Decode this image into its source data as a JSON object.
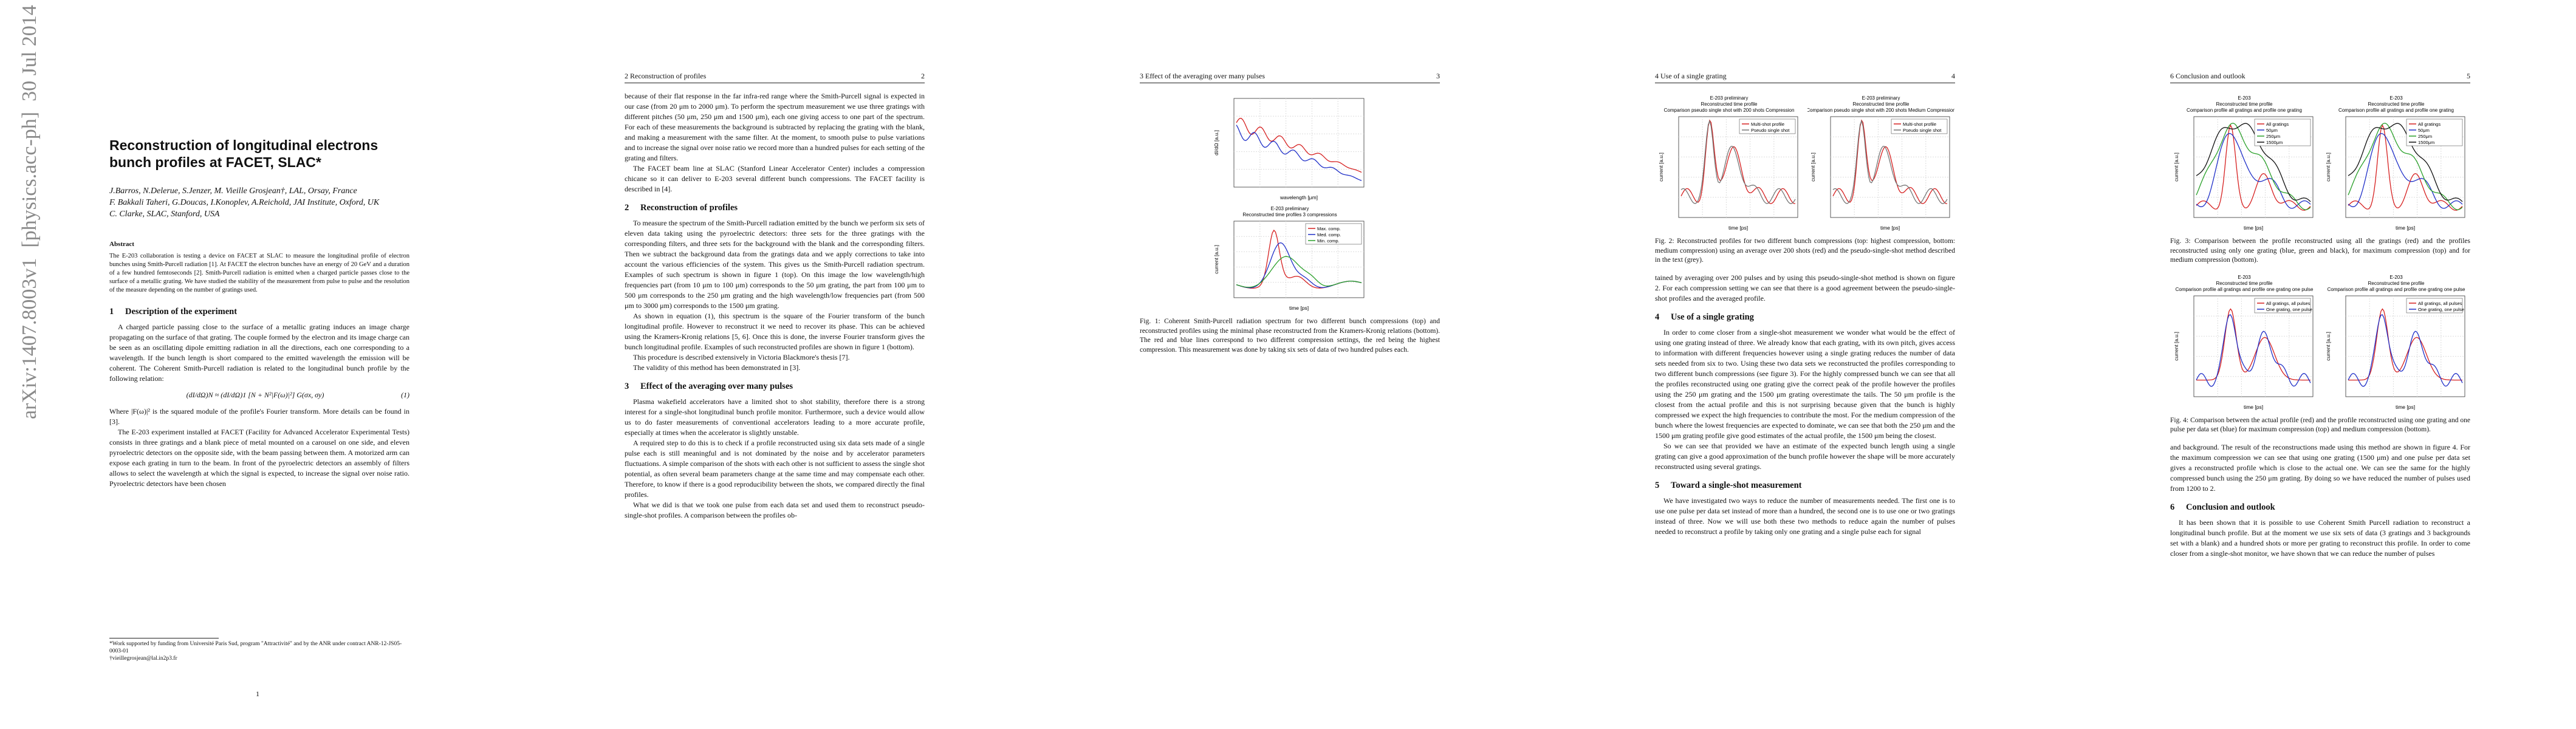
{
  "arxiv_stamp": "arXiv:1407.8003v1  [physics.acc-ph]  30 Jul 2014",
  "pages": [
    {
      "blocks": [
        {
          "kind": "title",
          "lines": [
            "Reconstruction of longitudinal electrons",
            "bunch profiles at FACET, SLAC*"
          ]
        },
        {
          "kind": "authors",
          "lines": [
            "J.Barros, N.Delerue, S.Jenzer, M. Vieille Grosjean†, LAL, Orsay, France",
            "F. Bakkali Taheri, G.Doucas, I.Konoplev, A.Reichold, JAI Institute, Oxford, UK",
            "C. Clarke, SLAC, Stanford, USA"
          ]
        },
        {
          "kind": "abstract-heading",
          "text": "Abstract"
        },
        {
          "kind": "abstract",
          "text": "The E-203 collaboration is testing a device on FACET at SLAC to measure the longitudinal profile of electron bunches using Smith-Purcell radiation [1]. At FACET the electron bunches have an energy of 20 GeV and a duration of a few hundred femtoseconds [2]. Smith-Purcell radiation is emitted when a charged particle passes close to the surface of a metallic grating. We have studied the stability of the measurement from pulse to pulse and the resolution of the measure depending on the number of gratings used."
        },
        {
          "kind": "section",
          "number": "1",
          "title": "Description of the experiment"
        },
        {
          "kind": "para",
          "text": "A charged particle passing close to the surface of a metallic grating induces an image charge propagating on the surface of that grating. The couple formed by the electron and its image charge can be seen as an oscillating dipole emitting radiation in all the directions, each one corresponding to a wavelength. If the bunch length is short compared to the emitted wavelength the emission will be coherent. The Coherent Smith-Purcell radiation is related to the longitudinal bunch profile by the following relation:"
        },
        {
          "kind": "equation",
          "text": "(dI/dΩ)N  ≈  (dI/dΩ)1  [N + N²|F(ω)|²] G(σx, σy)",
          "number": "(1)"
        },
        {
          "kind": "para-noindent",
          "text": "Where |F(ω)|² is the squared module of the profile's Fourier transform. More details can be found in [3]."
        },
        {
          "kind": "para",
          "text": "The E-203 experiment installed at FACET (Facility for Advanced Accelerator Experimental Tests) consists in three gratings and a blank piece of metal mounted on a carousel on one side, and eleven pyroelectric detectors on the opposite side, with the beam passing between them. A motorized arm can expose each grating in turn to the beam. In front of the pyroelectric detectors an assembly of filters allows to select the wavelength at which the signal is expected, to increase the signal over noise ratio. Pyroelectric detectors have been chosen"
        },
        {
          "kind": "footnote",
          "lines": [
            "*Work supported by funding from Université Paris Sud, program \"Attractivité\" and by the ANR under contract ANR-12-JS05-0003-01",
            "†vieillegrosjean@lal.in2p3.fr"
          ]
        }
      ],
      "page_number": "1"
    },
    {
      "header": {
        "section": "2 Reconstruction of profiles",
        "number": "2"
      },
      "blocks": [
        {
          "kind": "para-noindent",
          "text": "because of their flat response in the far infra-red range where the Smith-Purcell signal is expected in our case (from 20 μm to 2000 μm). To perform the spectrum measurement we use three gratings with different pitches (50 μm, 250 μm and 1500 μm), each one giving access to one part of the spectrum. For each of these measurements the background is subtracted by replacing the grating with the blank, and making a measurement with the same filter. At the moment, to smooth pulse to pulse variations and to increase the signal over noise ratio we record more than a hundred pulses for each setting of the grating and filters."
        },
        {
          "kind": "para",
          "text": "The FACET beam line at SLAC (Stanford Linear Accelerator Center) includes a compression chicane so it can deliver to E-203 several different bunch compressions. The FACET facility is described in [4]."
        },
        {
          "kind": "section",
          "number": "2",
          "title": "Reconstruction of profiles"
        },
        {
          "kind": "para",
          "text": "To measure the spectrum of the Smith-Purcell radiation emitted by the bunch we perform six sets of eleven data taking using the pyroelectric detectors: three sets for the three gratings with the corresponding filters, and three sets for the background with the blank and the corresponding filters. Then we subtract the background data from the gratings data and we apply corrections to take into account the various efficiencies of the system. This gives us the Smith-Purcell radiation spectrum. Examples of such spectrum is shown in figure 1 (top). On this image the low wavelength/high frequencies part (from 10 μm to 100 μm) corresponds to the 50 μm grating, the part from 100 μm to 500 μm corresponds to the 250 μm grating and the high wavelength/low frequencies part (from 500 μm to 3000 μm) corresponds to the 1500 μm grating."
        },
        {
          "kind": "para",
          "text": "As shown in equation (1), this spectrum is the square of the Fourier transform of the bunch longitudinal profile. However to reconstruct it we need to recover its phase. This can be achieved using the Kramers-Kronig relations [5, 6]. Once this is done, the inverse Fourier transform gives the bunch longitudinal profile. Examples of such reconstructed profiles are shown in figure 1 (bottom)."
        },
        {
          "kind": "para",
          "text": "This procedure is described extensively in Victoria Blackmore's thesis [7]."
        },
        {
          "kind": "para",
          "text": "The validity of this method has been demonstrated in [3]."
        },
        {
          "kind": "section",
          "number": "3",
          "title": "Effect of the averaging over many pulses"
        },
        {
          "kind": "para",
          "text": "Plasma wakefield accelerators have a limited shot to shot stability, therefore there is a strong interest for a single-shot longitudinal bunch profile monitor. Furthermore, such a device would allow us to do faster measurements of conventional accelerators leading to a more accurate profile, especially at times when the accelerator is slightly unstable."
        },
        {
          "kind": "para",
          "text": "A required step to do this is to check if a profile reconstructed using six data sets made of a single pulse each is still meaningful and is not dominated by the noise and by accelerator parameters fluctuations. A simple comparison of the shots with each other is not sufficient to assess the single shot potential, as often several beam parameters change at the same time and may compensate each other. Therefore, to know if there is a good reproducibility between the shots, we compared directly the final profiles."
        },
        {
          "kind": "para",
          "text": "What we did is that we took one pulse from each data set and used them to reconstruct pseudo-single-shot profiles. A comparison between the profiles ob-"
        }
      ]
    },
    {
      "header": {
        "section": "3 Effect of the averaging over many pulses",
        "number": "3"
      },
      "blocks": [
        {
          "kind": "figure",
          "layout": "column",
          "panels": [
            {
              "title": [],
              "xlabel": "wavelength [μm]",
              "ylabel": "dI/dΩ [a.u.]",
              "series": [
                {
                  "name": null,
                  "color": "#d62020"
                },
                {
                  "name": null,
                  "color": "#2030c8"
                }
              ],
              "style": "spectrum"
            },
            {
              "title": [
                "E-203 preliminary",
                "Reconstructed time profiles 3 compressions"
              ],
              "xlabel": "time [ps]",
              "ylabel": "current [a.u.]",
              "series": [
                {
                  "name": "Max. comp.",
                  "color": "#d62020"
                },
                {
                  "name": "Med. comp.",
                  "color": "#2030c8"
                },
                {
                  "name": "Min. comp.",
                  "color": "#2aa02a"
                }
              ],
              "style": "profile"
            }
          ]
        },
        {
          "kind": "caption",
          "text": "Fig. 1: Coherent Smith-Purcell radiation spectrum for two different bunch compressions (top) and reconstructed profiles using the minimal phase reconstructed from the Kramers-Kronig relations (bottom). The red and blue lines correspond to two different compression settings, the red being the highest compression. This measurement was done by taking six sets of data of two hundred pulses each."
        }
      ]
    },
    {
      "header": {
        "section": "4 Use of a single grating",
        "number": "4"
      },
      "blocks": [
        {
          "kind": "figure",
          "layout": "row",
          "panels": [
            {
              "title": [
                "E-203 preliminary",
                "Reconstructed time profile",
                "Comparison pseudo single shot with 200 shots Compression"
              ],
              "xlabel": "time [ps]",
              "ylabel": "current [a.u.]",
              "series": [
                {
                  "name": "Multi-shot profile",
                  "color": "#d62020"
                },
                {
                  "name": "Pseudo single shot",
                  "color": "#777777"
                }
              ],
              "style": "shots"
            },
            {
              "title": [
                "E-203 preliminary",
                "Reconstructed time profile",
                "Comparison pseudo single shot with 200 shots Medium Compression"
              ],
              "xlabel": "time [ps]",
              "ylabel": "current [a.u.]",
              "series": [
                {
                  "name": "Multi-shot profile",
                  "color": "#d62020"
                },
                {
                  "name": "Pseudo single shot",
                  "color": "#777777"
                }
              ],
              "style": "shots"
            }
          ]
        },
        {
          "kind": "caption",
          "text": "Fig. 2: Reconstructed profiles for two different bunch compressions (top: highest compression, bottom: medium compression) using an average over 200 shots (red) and the pseudo-single-shot method described in the text (grey)."
        },
        {
          "kind": "para-noindent",
          "text": "tained by averaging over 200 pulses and by using this pseudo-single-shot method is shown on figure 2. For each compression setting we can see that there is a good agreement between the pseudo-single-shot profiles and the averaged profile."
        },
        {
          "kind": "section",
          "number": "4",
          "title": "Use of a single grating"
        },
        {
          "kind": "para",
          "text": "In order to come closer from a single-shot measurement we wonder what would be the effect of using one grating instead of three. We already know that each grating, with its own pitch, gives access to information with different frequencies however using a single grating reduces the number of data sets needed from six to two. Using these two data sets we reconstructed the profiles corresponding to two different bunch compressions (see figure 3). For the highly compressed bunch we can see that all the profiles reconstructed using one grating give the correct peak of the profile however the profiles using the 250 μm grating and the 1500 μm grating overestimate the tails. The 50 μm profile is the closest from the actual profile and this is not surprising because given that the bunch is highly compressed we expect the high frequencies to contribute the most. For the medium compression of the bunch where the lowest frequencies are expected to dominate, we can see that both the 250 μm and the 1500 μm grating profile give good estimates of the actual profile, the 1500 μm being the closest."
        },
        {
          "kind": "para",
          "text": "So we can see that provided we have an estimate of the expected bunch length using a single grating can give a good approximation of the bunch profile however the shape will be more accurately reconstructed using several gratings."
        },
        {
          "kind": "section",
          "number": "5",
          "title": "Toward a single-shot measurement"
        },
        {
          "kind": "para",
          "text": "We have investigated two ways to reduce the number of measurements needed. The first one is to use one pulse per data set instead of more than a hundred, the second one is to use one or two gratings instead of three. Now we will use both these two methods to reduce again the number of pulses needed to reconstruct a profile by taking only one grating and a single pulse each for signal"
        }
      ]
    },
    {
      "header": {
        "section": "6 Conclusion and outlook",
        "number": "5"
      },
      "blocks": [
        {
          "kind": "figure",
          "layout": "row",
          "panels": [
            {
              "title": [
                "E-203",
                "Reconstructed time profile",
                "Comparison profile all gratings and profile one grating"
              ],
              "xlabel": "time [ps]",
              "ylabel": "current [a.u.]",
              "series": [
                {
                  "name": "All gratings",
                  "color": "#d62020"
                },
                {
                  "name": "50μm",
                  "color": "#2030c8"
                },
                {
                  "name": "250μm",
                  "color": "#2aa02a"
                },
                {
                  "name": "1500μm",
                  "color": "#111111"
                }
              ],
              "style": "gratings"
            },
            {
              "title": [
                "E-203",
                "Reconstructed time profile",
                "Comparison profile all gratings and profile one grating"
              ],
              "xlabel": "time [ps]",
              "ylabel": "current [a.u.]",
              "series": [
                {
                  "name": "All gratings",
                  "color": "#d62020"
                },
                {
                  "name": "50μm",
                  "color": "#2030c8"
                },
                {
                  "name": "250μm",
                  "color": "#2aa02a"
                },
                {
                  "name": "1500μm",
                  "color": "#111111"
                }
              ],
              "style": "gratings"
            }
          ]
        },
        {
          "kind": "caption",
          "text": "Fig. 3: Comparison between the profile reconstructed using all the gratings (red) and the profiles reconstructed using only one grating (blue, green and black), for maximum compression (top) and for medium compression (bottom)."
        },
        {
          "kind": "figure",
          "layout": "row",
          "panels": [
            {
              "title": [
                "E-203",
                "Reconstructed time profile",
                "Comparison profile all gratings and profile one grating one pulse"
              ],
              "xlabel": "time [ps]",
              "ylabel": "current [a.u.]",
              "series": [
                {
                  "name": "All gratings, all pulses",
                  "color": "#d62020"
                },
                {
                  "name": "One grating, one pulse",
                  "color": "#2030c8"
                }
              ],
              "style": "single"
            },
            {
              "title": [
                "E-203",
                "Reconstructed time profile",
                "Comparison profile all gratings and profile one grating one pulse"
              ],
              "xlabel": "time [ps]",
              "ylabel": "current [a.u.]",
              "series": [
                {
                  "name": "All gratings, all pulses",
                  "color": "#d62020"
                },
                {
                  "name": "One grating, one pulse",
                  "color": "#2030c8"
                }
              ],
              "style": "single"
            }
          ]
        },
        {
          "kind": "caption",
          "text": "Fig. 4: Comparison between the actual profile (red) and the profile reconstructed using one grating and one pulse per data set (blue) for maximum compression (top) and medium compression (bottom)."
        },
        {
          "kind": "para-noindent",
          "text": "and background. The result of the reconstructions made using this method are shown in figure 4. For the maximum compression we can see that using one grating (1500 μm) and one pulse per data set gives a reconstructed profile which is close to the actual one. We can see the same for the highly compressed bunch using the 250 μm grating. By doing so we have reduced the number of pulses used from 1200 to 2."
        },
        {
          "kind": "section",
          "number": "6",
          "title": "Conclusion and outlook"
        },
        {
          "kind": "para",
          "text": "It has been shown that it is possible to use Coherent Smith Purcell radiation to reconstruct a longitudinal bunch profile. But at the moment we use six sets of data (3 gratings and 3 backgrounds set with a blank) and a hundred shots or more per grating to reconstruct this profile. In order to come closer from a single-shot monitor, we have shown that we can reduce the number of pulses"
        }
      ]
    }
  ]
}
